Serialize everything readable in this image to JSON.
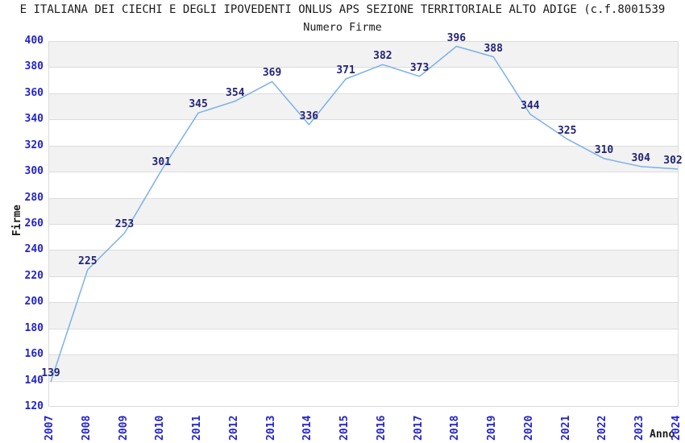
{
  "header": {
    "title": "E ITALIANA DEI CIECHI E DEGLI IPOVEDENTI ONLUS APS SEZIONE TERRITORIALE ALTO ADIGE (c.f.8001539",
    "subtitle": "Numero Firme"
  },
  "chart_data": {
    "type": "line",
    "title": "Numero Firme",
    "xlabel": "Anno",
    "ylabel": "Firme",
    "x": [
      2007,
      2008,
      2009,
      2010,
      2011,
      2012,
      2013,
      2014,
      2015,
      2016,
      2017,
      2018,
      2019,
      2020,
      2021,
      2022,
      2023,
      2024
    ],
    "values": [
      139,
      225,
      253,
      301,
      345,
      354,
      369,
      336,
      371,
      382,
      373,
      396,
      388,
      344,
      325,
      310,
      304,
      302
    ],
    "ylim": [
      120,
      400
    ],
    "ytick_step": 20,
    "grid": "horizontal-gridlines-with-alternating-bands",
    "legend": "none",
    "point_labels": true,
    "x_tick_rotation": -90
  },
  "colors": {
    "line": "#7cb0e8",
    "tick_label": "#2323cd",
    "point_label": "#232379",
    "band": "#f2f2f2",
    "gridline": "#dcdcdc",
    "text": "#1a1a1a"
  }
}
